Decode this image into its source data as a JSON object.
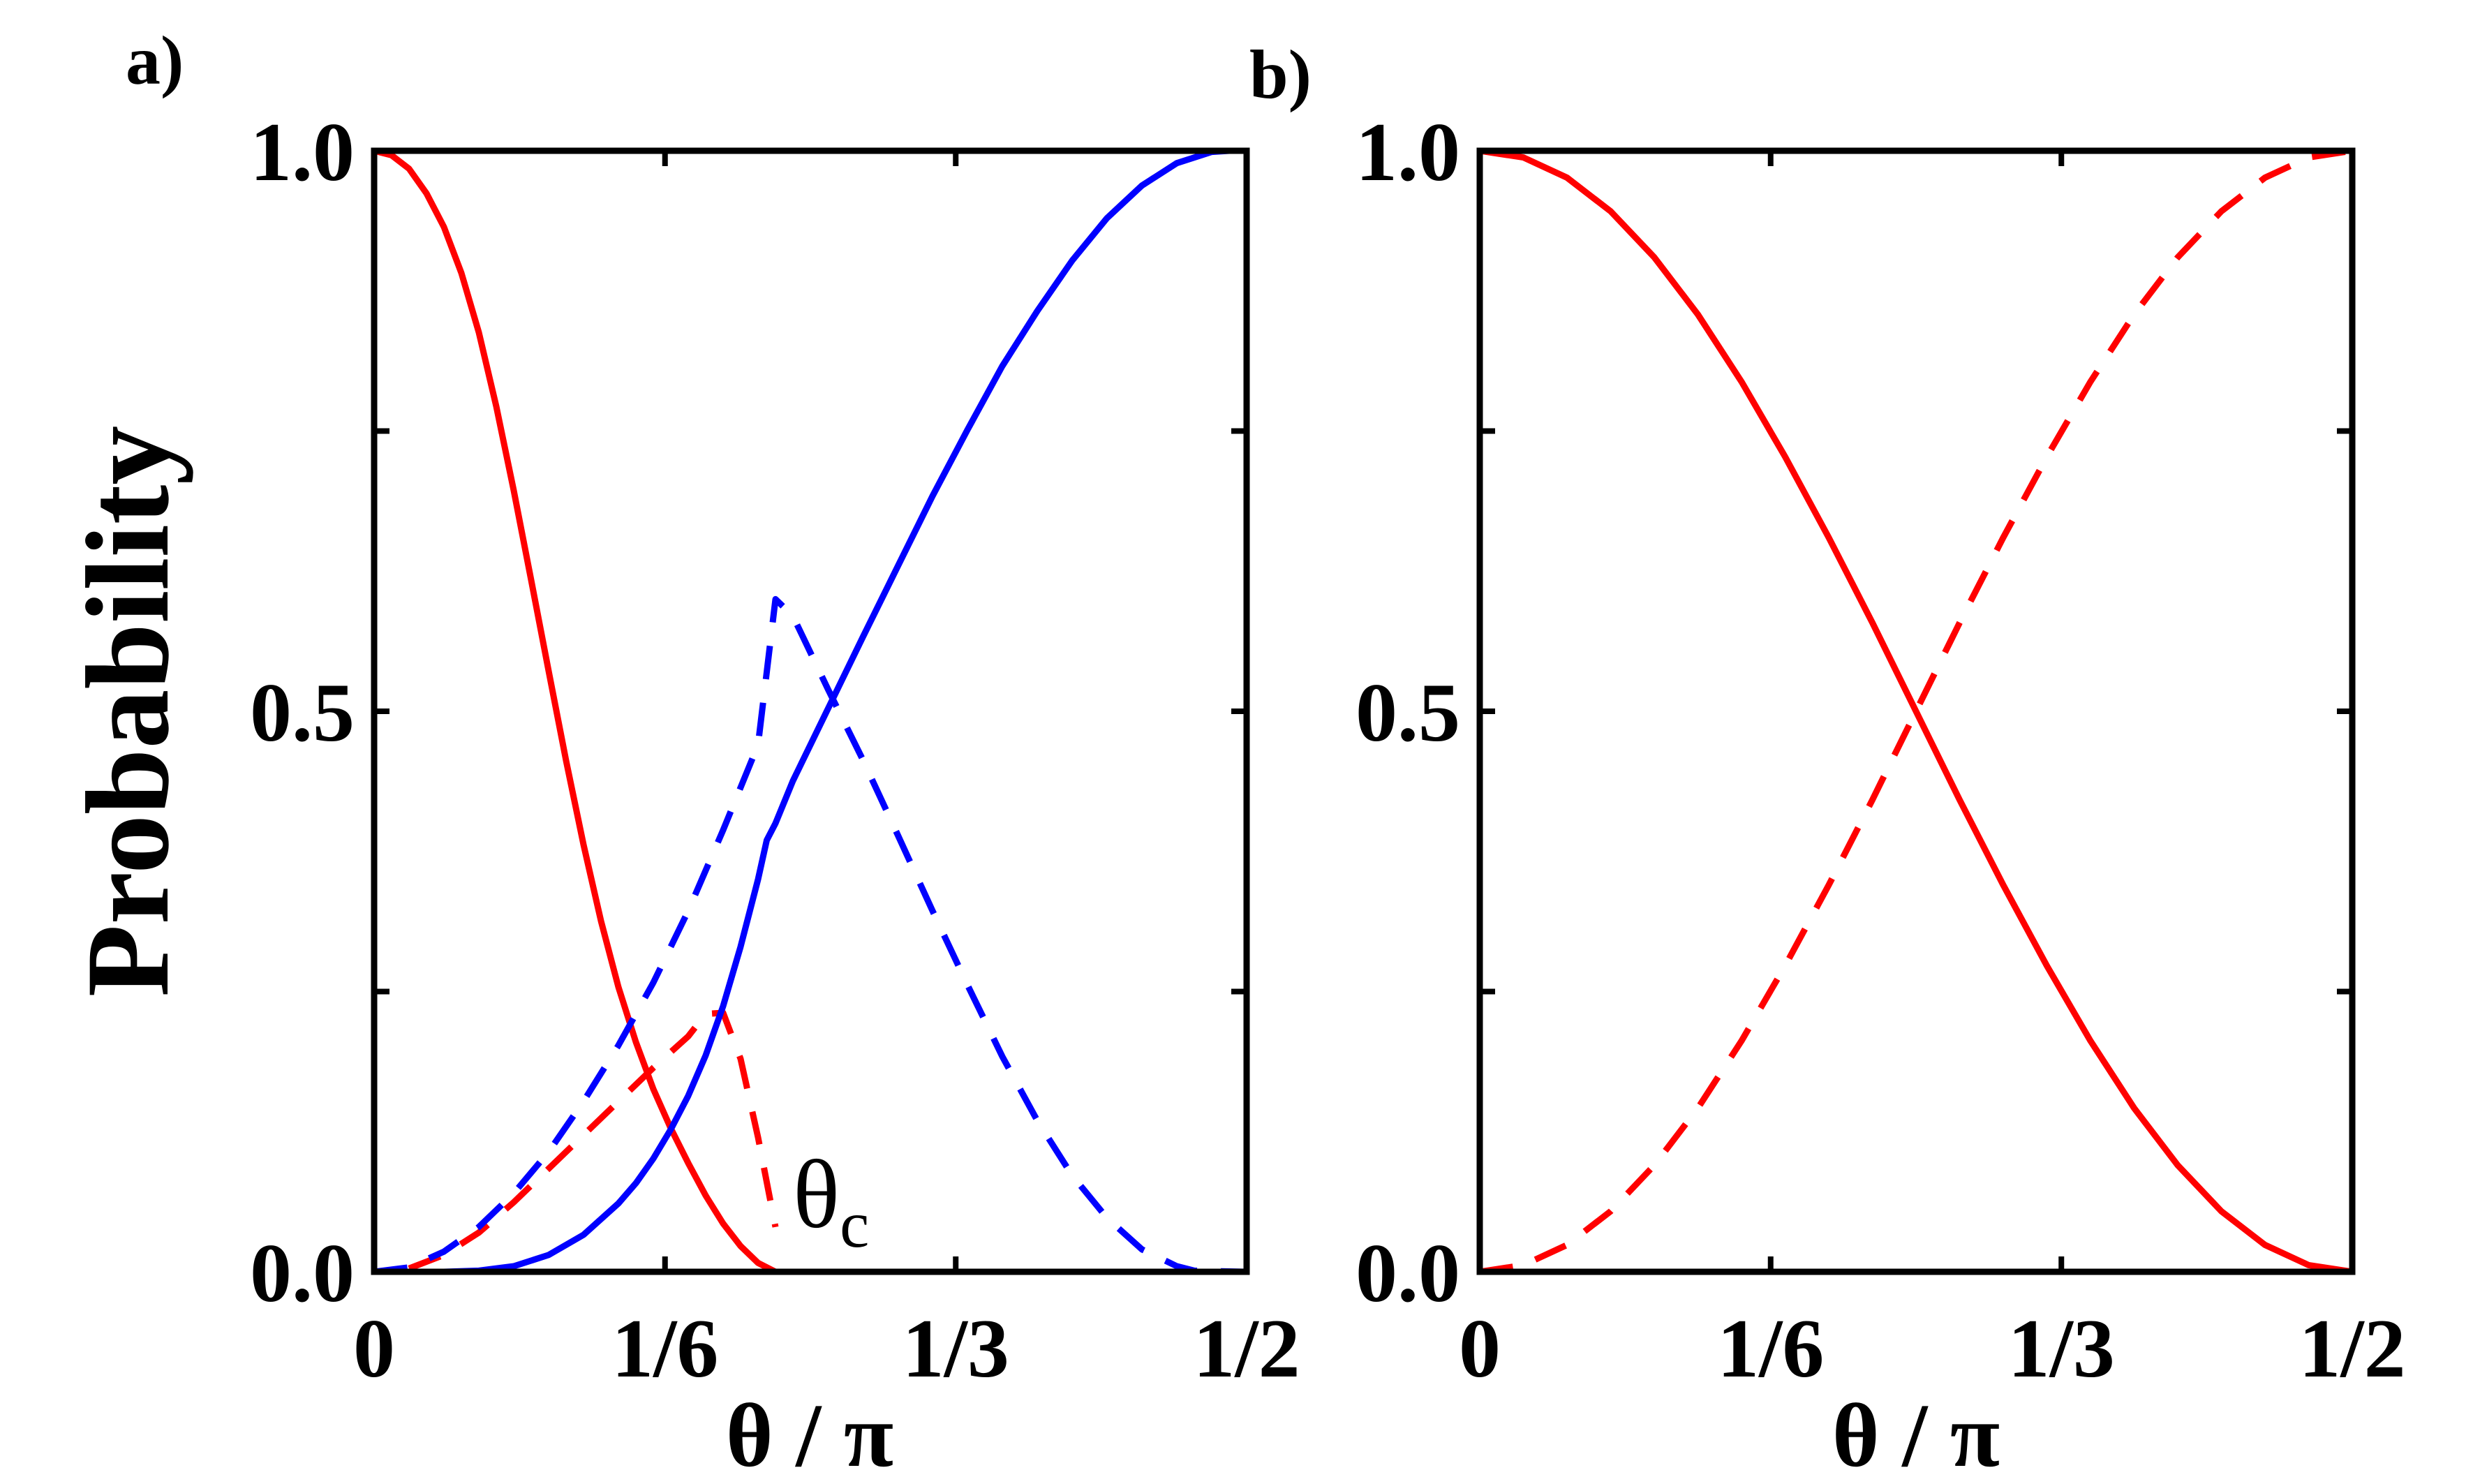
{
  "chart_data": [
    {
      "panel_label": "a)",
      "type": "line",
      "xlabel": "θ / π",
      "ylabel": "Probability",
      "xlim": [
        0,
        0.5
      ],
      "ylim": [
        0,
        1
      ],
      "x_ticks": [
        {
          "value": 0,
          "label": "0"
        },
        {
          "value": 0.1667,
          "label": "1/6"
        },
        {
          "value": 0.3333,
          "label": "1/3"
        },
        {
          "value": 0.5,
          "label": "1/2"
        }
      ],
      "y_ticks": [
        {
          "value": 0,
          "label": "0.0"
        },
        {
          "value": 0.25,
          "label": ""
        },
        {
          "value": 0.5,
          "label": "0.5"
        },
        {
          "value": 0.75,
          "label": ""
        },
        {
          "value": 1,
          "label": "1.0"
        }
      ],
      "annotation": {
        "text": "θ",
        "sub": "c",
        "x": 0.24,
        "y": 0.04
      },
      "series": [
        {
          "color": "#ff0000",
          "dash": "solid",
          "x": [
            0,
            0.01,
            0.02,
            0.03,
            0.04,
            0.05,
            0.06,
            0.07,
            0.08,
            0.09,
            0.1,
            0.11,
            0.12,
            0.13,
            0.14,
            0.15,
            0.16,
            0.17,
            0.18,
            0.19,
            0.2,
            0.21,
            0.22,
            0.23
          ],
          "y": [
            1.0,
            0.996,
            0.984,
            0.962,
            0.932,
            0.891,
            0.838,
            0.772,
            0.697,
            0.617,
            0.536,
            0.456,
            0.381,
            0.313,
            0.254,
            0.205,
            0.163,
            0.128,
            0.097,
            0.068,
            0.043,
            0.023,
            0.008,
            0.0
          ]
        },
        {
          "color": "#ff0000",
          "dash": "dashed",
          "x": [
            0.02,
            0.04,
            0.06,
            0.08,
            0.1,
            0.12,
            0.14,
            0.16,
            0.18,
            0.19,
            0.2,
            0.21,
            0.22,
            0.23
          ],
          "y": [
            0.003,
            0.015,
            0.035,
            0.062,
            0.092,
            0.122,
            0.152,
            0.182,
            0.21,
            0.23,
            0.231,
            0.19,
            0.12,
            0.04
          ]
        },
        {
          "color": "#0000ff",
          "dash": "solid",
          "x": [
            0.02,
            0.04,
            0.06,
            0.08,
            0.1,
            0.12,
            0.14,
            0.15,
            0.16,
            0.17,
            0.18,
            0.19,
            0.2,
            0.21,
            0.22,
            0.225,
            0.23,
            0.24,
            0.26,
            0.28,
            0.3,
            0.32,
            0.34,
            0.36,
            0.38,
            0.4,
            0.42,
            0.44,
            0.46,
            0.48,
            0.49,
            0.5
          ],
          "y": [
            0.0,
            0.0,
            0.001,
            0.005,
            0.015,
            0.033,
            0.061,
            0.079,
            0.101,
            0.127,
            0.157,
            0.193,
            0.237,
            0.29,
            0.35,
            0.385,
            0.4,
            0.438,
            0.502,
            0.566,
            0.629,
            0.692,
            0.751,
            0.808,
            0.857,
            0.902,
            0.94,
            0.969,
            0.989,
            0.999,
            1.0,
            1.0
          ]
        },
        {
          "color": "#0000ff",
          "dash": "dashed",
          "x": [
            0,
            0.02,
            0.04,
            0.06,
            0.08,
            0.1,
            0.12,
            0.14,
            0.16,
            0.18,
            0.2,
            0.22,
            0.23,
            0.24,
            0.26,
            0.28,
            0.3,
            0.32,
            0.34,
            0.36,
            0.38,
            0.4,
            0.42,
            0.44,
            0.46,
            0.47,
            0.5
          ],
          "y": [
            0.0,
            0.004,
            0.018,
            0.04,
            0.07,
            0.107,
            0.152,
            0.202,
            0.258,
            0.322,
            0.394,
            0.47,
            0.6,
            0.585,
            0.52,
            0.457,
            0.39,
            0.322,
            0.256,
            0.192,
            0.135,
            0.086,
            0.048,
            0.02,
            0.005,
            0.001,
            0.0
          ]
        }
      ]
    },
    {
      "panel_label": "b)",
      "type": "line",
      "xlabel": "θ / π",
      "ylabel": "",
      "xlim": [
        0,
        0.5
      ],
      "ylim": [
        0,
        1
      ],
      "x_ticks": [
        {
          "value": 0,
          "label": "0"
        },
        {
          "value": 0.1667,
          "label": "1/6"
        },
        {
          "value": 0.3333,
          "label": "1/3"
        },
        {
          "value": 0.5,
          "label": "1/2"
        }
      ],
      "y_ticks": [
        {
          "value": 0,
          "label": "0.0"
        },
        {
          "value": 0.25,
          "label": ""
        },
        {
          "value": 0.5,
          "label": "0.5"
        },
        {
          "value": 0.75,
          "label": ""
        },
        {
          "value": 1,
          "label": "1.0"
        }
      ],
      "series": [
        {
          "color": "#ff0000",
          "dash": "solid",
          "x": [
            0,
            0.025,
            0.05,
            0.075,
            0.1,
            0.125,
            0.15,
            0.175,
            0.2,
            0.225,
            0.25,
            0.275,
            0.3,
            0.325,
            0.35,
            0.375,
            0.4,
            0.425,
            0.45,
            0.475,
            0.5
          ],
          "y": [
            1.0,
            0.994,
            0.976,
            0.946,
            0.905,
            0.854,
            0.794,
            0.727,
            0.655,
            0.579,
            0.5,
            0.421,
            0.345,
            0.273,
            0.206,
            0.146,
            0.095,
            0.054,
            0.024,
            0.006,
            0.0
          ]
        },
        {
          "color": "#ff0000",
          "dash": "dashed",
          "x": [
            0,
            0.025,
            0.05,
            0.075,
            0.1,
            0.125,
            0.15,
            0.175,
            0.2,
            0.225,
            0.25,
            0.275,
            0.3,
            0.325,
            0.35,
            0.375,
            0.4,
            0.425,
            0.45,
            0.475,
            0.5
          ],
          "y": [
            0.0,
            0.006,
            0.024,
            0.054,
            0.095,
            0.146,
            0.206,
            0.273,
            0.345,
            0.421,
            0.5,
            0.579,
            0.655,
            0.727,
            0.794,
            0.854,
            0.905,
            0.946,
            0.976,
            0.994,
            1.0
          ]
        }
      ]
    }
  ]
}
